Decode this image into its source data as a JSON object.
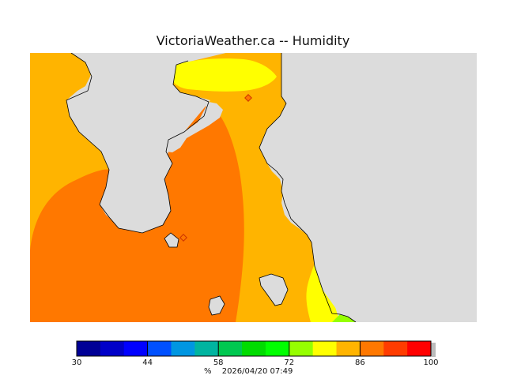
{
  "title": "VictoriaWeather.ca -- Humidity",
  "map": {
    "colors": {
      "land_background": "#dcdcdc",
      "band_80_84": "#ffb400",
      "band_84_88": "#ff7800",
      "band_76_80": "#ffff00",
      "band_72_76": "#96ff00",
      "marker": "#cc3300"
    }
  },
  "scale": {
    "min": 30,
    "max": 100,
    "colors": [
      "#000096",
      "#0000c8",
      "#0000ff",
      "#0050ff",
      "#0096e1",
      "#00b4a0",
      "#00c850",
      "#00dc00",
      "#00ff00",
      "#96ff00",
      "#ffff00",
      "#ffb400",
      "#ff7800",
      "#ff3c00",
      "#ff0000"
    ],
    "tick_labels": [
      "30",
      "44",
      "58",
      "72",
      "86",
      "100"
    ],
    "unit": "%",
    "timestamp": "2026/04/20 07:49"
  }
}
